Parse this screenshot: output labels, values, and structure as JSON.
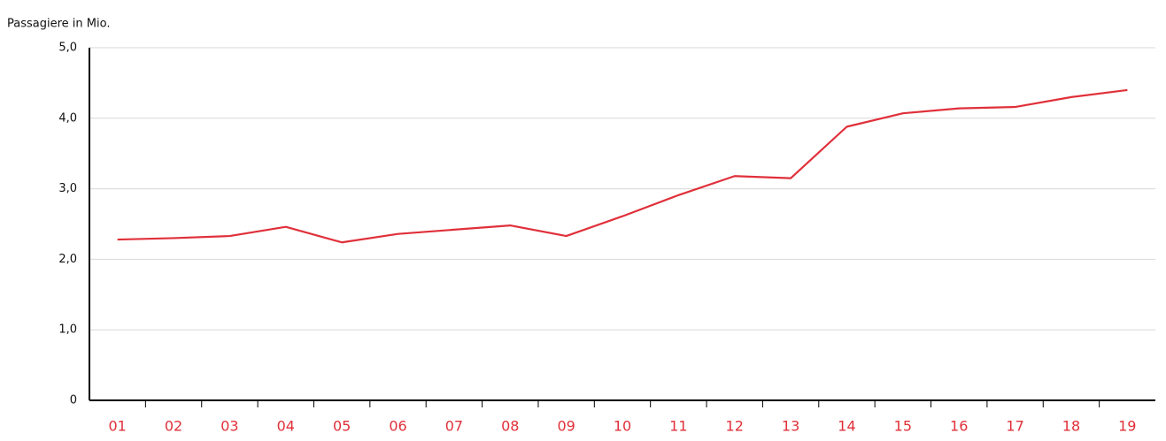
{
  "chart_data": {
    "type": "line",
    "y_label": "Passagiere in Mio.",
    "categories": [
      "01",
      "02",
      "03",
      "04",
      "05",
      "06",
      "07",
      "08",
      "09",
      "10",
      "11",
      "12",
      "13",
      "14",
      "15",
      "16",
      "17",
      "18",
      "19"
    ],
    "series": [
      {
        "name": null,
        "color": "#e0303a",
        "values": [
          2.28,
          2.3,
          2.33,
          2.46,
          2.24,
          2.36,
          2.42,
          2.48,
          2.33,
          2.61,
          2.91,
          3.18,
          3.15,
          3.88,
          4.07,
          4.14,
          4.16,
          4.3,
          4.4
        ]
      }
    ],
    "ylim": [
      0,
      5
    ],
    "yticks": [
      0,
      {
        "value": 1,
        "label": "1,0"
      },
      {
        "value": 2,
        "label": "2,0"
      },
      {
        "value": 3,
        "label": "3,0"
      },
      {
        "value": 4,
        "label": "4,0"
      },
      {
        "value": 5,
        "label": "5,0"
      }
    ],
    "grid": true
  }
}
